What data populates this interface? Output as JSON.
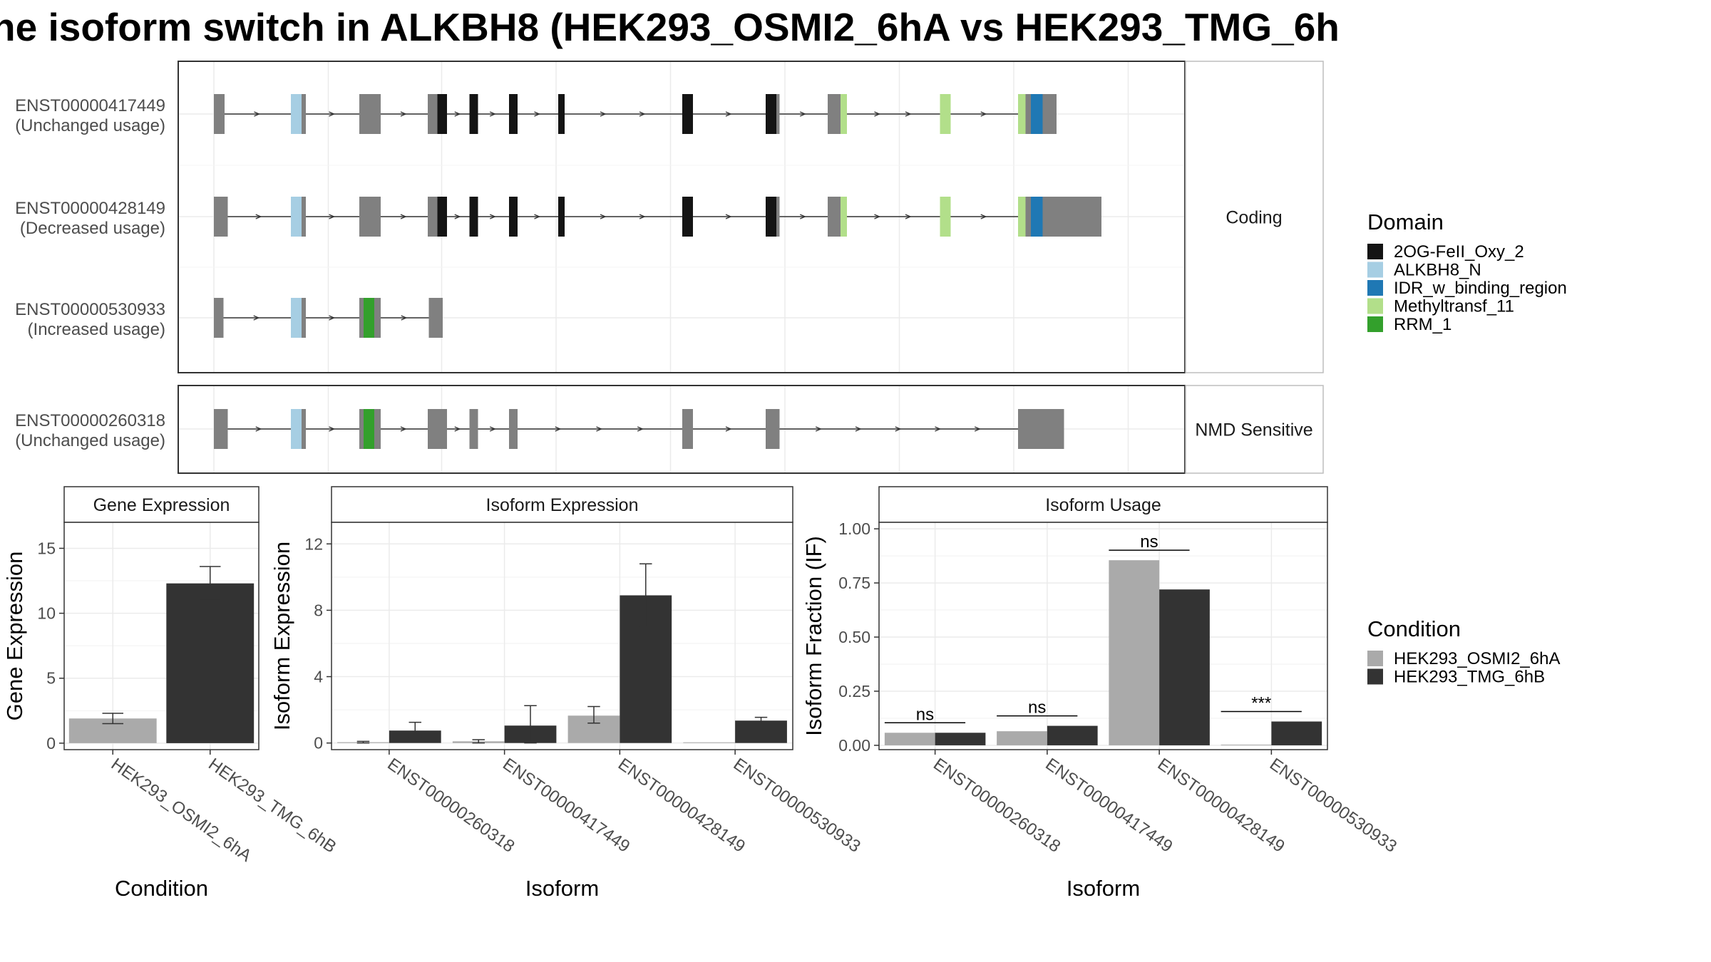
{
  "title": "ne isoform switch in ALKBH8 (HEK293_OSMI2_6hA vs HEK293_TMG_6h",
  "colors": {
    "2OG-FeII_Oxy_2": "#141414",
    "ALKBH8_N": "#a6cee3",
    "IDR_w_binding_region": "#1f78b4",
    "Methyltransf_11": "#b2df8a",
    "RRM_1": "#33a02c",
    "exon": "#808080",
    "HEK293_OSMI2_6hA": "#aaaaaa",
    "HEK293_TMG_6hB": "#333333"
  },
  "legend_domain": {
    "title": "Domain",
    "items": [
      "2OG-FeII_Oxy_2",
      "ALKBH8_N",
      "IDR_w_binding_region",
      "Methyltransf_11",
      "RRM_1"
    ]
  },
  "legend_condition": {
    "title": "Condition",
    "items": [
      "HEK293_OSMI2_6hA",
      "HEK293_TMG_6hB"
    ]
  },
  "chart_data": [
    {
      "type": "gene-structure",
      "groups": [
        {
          "label": "Coding",
          "isoforms": [
            {
              "id": "ENST00000417449",
              "usage": "(Unchanged usage)",
              "exons": [
                [
                  200,
                  210,
                  "exon"
                ],
                [
                  272,
                  282,
                  "ALKBH8_N"
                ],
                [
                  282,
                  286,
                  "exon"
                ],
                [
                  336,
                  356,
                  "exon"
                ],
                [
                  400,
                  409,
                  "exon"
                ],
                [
                  409,
                  418,
                  "2OG-FeII_Oxy_2"
                ],
                [
                  439,
                  447,
                  "2OG-FeII_Oxy_2"
                ],
                [
                  476,
                  484,
                  "2OG-FeII_Oxy_2"
                ],
                [
                  522,
                  528,
                  "2OG-FeII_Oxy_2"
                ],
                [
                  638,
                  648,
                  "2OG-FeII_Oxy_2"
                ],
                [
                  716,
                  726,
                  "2OG-FeII_Oxy_2"
                ],
                [
                  726,
                  729,
                  "exon"
                ],
                [
                  774,
                  786,
                  "exon"
                ],
                [
                  786,
                  792,
                  "Methyltransf_11"
                ],
                [
                  879,
                  889,
                  "Methyltransf_11"
                ],
                [
                  952,
                  959,
                  "Methyltransf_11"
                ],
                [
                  959,
                  964,
                  "exon"
                ],
                [
                  964,
                  975,
                  "IDR_w_binding_region"
                ],
                [
                  975,
                  988,
                  "exon"
                ]
              ],
              "tail": null
            },
            {
              "id": "ENST00000428149",
              "usage": "(Decreased usage)",
              "exons": [
                [
                  200,
                  213,
                  "exon"
                ],
                [
                  272,
                  282,
                  "ALKBH8_N"
                ],
                [
                  282,
                  286,
                  "exon"
                ],
                [
                  336,
                  356,
                  "exon"
                ],
                [
                  400,
                  409,
                  "exon"
                ],
                [
                  409,
                  418,
                  "2OG-FeII_Oxy_2"
                ],
                [
                  439,
                  447,
                  "2OG-FeII_Oxy_2"
                ],
                [
                  476,
                  484,
                  "2OG-FeII_Oxy_2"
                ],
                [
                  522,
                  528,
                  "2OG-FeII_Oxy_2"
                ],
                [
                  638,
                  648,
                  "2OG-FeII_Oxy_2"
                ],
                [
                  716,
                  726,
                  "2OG-FeII_Oxy_2"
                ],
                [
                  726,
                  729,
                  "exon"
                ],
                [
                  774,
                  786,
                  "exon"
                ],
                [
                  786,
                  792,
                  "Methyltransf_11"
                ],
                [
                  879,
                  889,
                  "Methyltransf_11"
                ],
                [
                  952,
                  959,
                  "Methyltransf_11"
                ],
                [
                  959,
                  964,
                  "exon"
                ],
                [
                  964,
                  975,
                  "IDR_w_binding_region"
                ],
                [
                  975,
                  988,
                  "exon"
                ]
              ],
              "tail": [
                988,
                1030
              ]
            },
            {
              "id": "ENST00000530933",
              "usage": "(Increased usage)",
              "exons": [
                [
                  200,
                  209,
                  "exon"
                ],
                [
                  272,
                  282,
                  "ALKBH8_N"
                ],
                [
                  282,
                  286,
                  "exon"
                ],
                [
                  336,
                  340,
                  "exon"
                ],
                [
                  340,
                  350,
                  "RRM_1"
                ],
                [
                  350,
                  356,
                  "exon"
                ],
                [
                  401,
                  414,
                  "exon"
                ]
              ],
              "tail": null
            }
          ]
        },
        {
          "label": "NMD Sensitive",
          "isoforms": [
            {
              "id": "ENST00000260318",
              "usage": "(Unchanged usage)",
              "exons": [
                [
                  200,
                  213,
                  "exon"
                ],
                [
                  272,
                  282,
                  "ALKBH8_N"
                ],
                [
                  282,
                  286,
                  "exon"
                ],
                [
                  336,
                  340,
                  "exon"
                ],
                [
                  340,
                  350,
                  "RRM_1"
                ],
                [
                  350,
                  356,
                  "exon"
                ],
                [
                  400,
                  418,
                  "exon"
                ],
                [
                  439,
                  447,
                  "exon"
                ],
                [
                  476,
                  484,
                  "exon"
                ],
                [
                  638,
                  648,
                  "exon"
                ],
                [
                  716,
                  729,
                  "exon"
                ],
                [
                  952,
                  995,
                  "exon"
                ]
              ],
              "tail": null
            }
          ]
        }
      ]
    },
    {
      "type": "bar",
      "title": "Gene Expression",
      "xlabel": "Condition",
      "ylabel": "Gene Expression",
      "categories": [
        "HEK293_OSMI2_6hA",
        "HEK293_TMG_6hB"
      ],
      "values": [
        1.9,
        12.3
      ],
      "errors": [
        [
          1.5,
          2.3
        ],
        [
          11.0,
          13.6
        ]
      ],
      "ylim": [
        -0.5,
        17
      ],
      "yticks": [
        0,
        5,
        10,
        15
      ]
    },
    {
      "type": "bar",
      "title": "Isoform Expression",
      "xlabel": "Isoform",
      "ylabel": "Isoform Expression",
      "categories": [
        "ENST00000260318",
        "ENST00000417449",
        "ENST00000428149",
        "ENST00000530933"
      ],
      "series": [
        {
          "name": "HEK293_OSMI2_6hA",
          "values": [
            0.05,
            0.1,
            1.65,
            0.0
          ],
          "errors": [
            [
              0.0,
              0.1
            ],
            [
              0.0,
              0.2
            ],
            [
              1.2,
              2.2
            ],
            [
              0.0,
              0.0
            ]
          ]
        },
        {
          "name": "HEK293_TMG_6hB",
          "values": [
            0.75,
            1.05,
            8.9,
            1.35
          ],
          "errors": [
            [
              0.3,
              1.25
            ],
            [
              0.0,
              2.25
            ],
            [
              7.0,
              10.8
            ],
            [
              1.2,
              1.55
            ]
          ]
        }
      ],
      "ylim": [
        -0.4,
        13.3
      ],
      "yticks": [
        0,
        4,
        8,
        12
      ]
    },
    {
      "type": "bar",
      "title": "Isoform Usage",
      "xlabel": "Isoform",
      "ylabel": "Isoform Fraction (IF)",
      "categories": [
        "ENST00000260318",
        "ENST00000417449",
        "ENST00000428149",
        "ENST00000530933"
      ],
      "series": [
        {
          "name": "HEK293_OSMI2_6hA",
          "values": [
            0.058,
            0.065,
            0.855,
            0.0
          ]
        },
        {
          "name": "HEK293_TMG_6hB",
          "values": [
            0.058,
            0.09,
            0.72,
            0.11
          ]
        }
      ],
      "significance": [
        "ns",
        "ns",
        "ns",
        "***"
      ],
      "ylim": [
        -0.02,
        1.03
      ],
      "yticks": [
        "0.00",
        "0.25",
        "0.50",
        "0.75",
        "1.00"
      ]
    }
  ]
}
